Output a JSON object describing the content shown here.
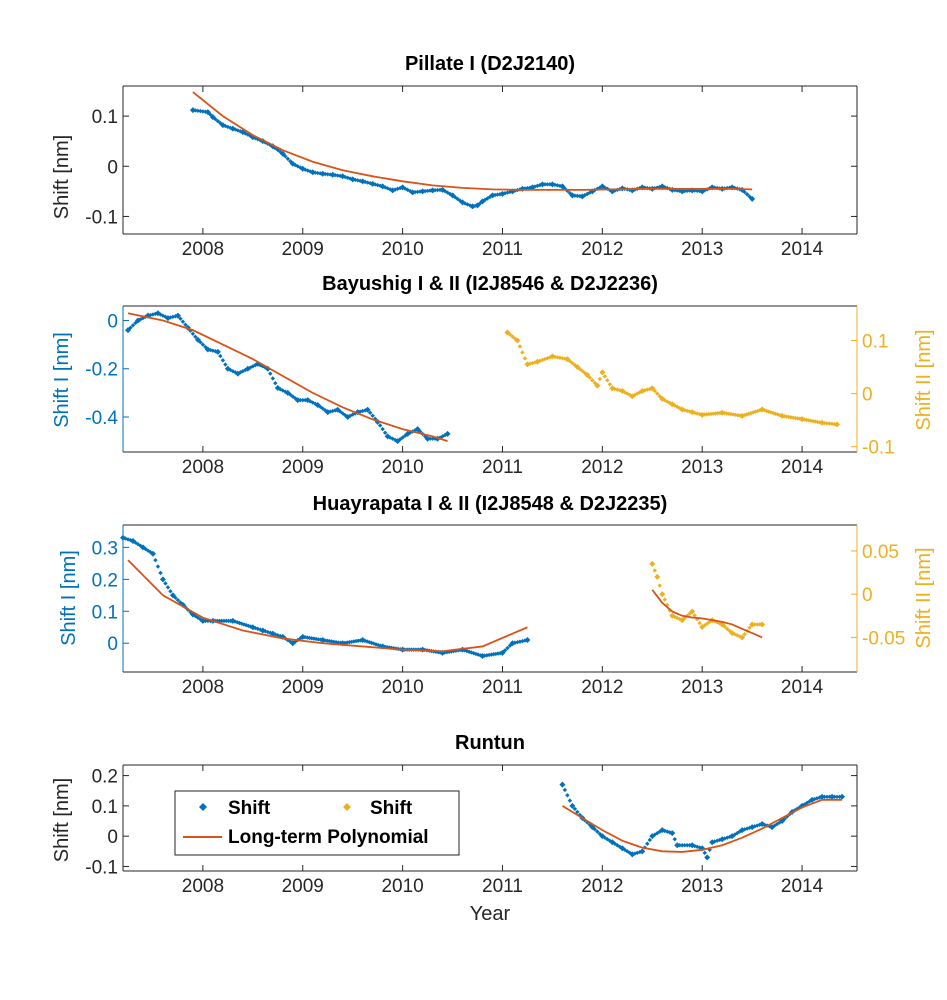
{
  "colors": {
    "primary": "#0072BD",
    "secondary": "#EDB120",
    "fit": "#D95319",
    "axis": "#262626"
  },
  "chart_data": [
    {
      "type": "scatter",
      "title": "Pillate I (D2J2140)",
      "ylabel": "Shift [nm]",
      "xlim": [
        2007.2,
        2014.55
      ],
      "ylim": [
        -0.135,
        0.16
      ],
      "xticks": [
        2008,
        2009,
        2010,
        2011,
        2012,
        2013,
        2014
      ],
      "yticks": [
        -0.1,
        0,
        0.1
      ],
      "ytick_labels": [
        "-0.1",
        "0",
        "0.1"
      ],
      "series": [
        {
          "name": "Shift",
          "color": "#0072BD",
          "kind": "dots",
          "axis": "left",
          "x": [
            2007.9,
            2008.05,
            2008.1,
            2008.2,
            2008.3,
            2008.4,
            2008.5,
            2008.6,
            2008.7,
            2008.8,
            2008.9,
            2009.0,
            2009.1,
            2009.2,
            2009.3,
            2009.4,
            2009.5,
            2009.6,
            2009.7,
            2009.8,
            2009.9,
            2010.0,
            2010.1,
            2010.2,
            2010.3,
            2010.4,
            2010.5,
            2010.6,
            2010.7,
            2010.75,
            2010.8,
            2010.9,
            2011.0,
            2011.1,
            2011.2,
            2011.3,
            2011.4,
            2011.5,
            2011.6,
            2011.7,
            2011.8,
            2011.9,
            2012.0,
            2012.1,
            2012.2,
            2012.3,
            2012.4,
            2012.5,
            2012.6,
            2012.7,
            2012.8,
            2012.9,
            2013.0,
            2013.1,
            2013.2,
            2013.3,
            2013.4,
            2013.5
          ],
          "y": [
            0.112,
            0.108,
            0.098,
            0.082,
            0.075,
            0.068,
            0.058,
            0.05,
            0.04,
            0.025,
            0.005,
            -0.005,
            -0.012,
            -0.015,
            -0.017,
            -0.02,
            -0.026,
            -0.03,
            -0.035,
            -0.04,
            -0.048,
            -0.042,
            -0.052,
            -0.05,
            -0.048,
            -0.047,
            -0.058,
            -0.072,
            -0.08,
            -0.078,
            -0.07,
            -0.058,
            -0.055,
            -0.05,
            -0.045,
            -0.042,
            -0.036,
            -0.036,
            -0.04,
            -0.058,
            -0.06,
            -0.05,
            -0.04,
            -0.05,
            -0.044,
            -0.048,
            -0.042,
            -0.045,
            -0.04,
            -0.047,
            -0.05,
            -0.048,
            -0.05,
            -0.042,
            -0.045,
            -0.042,
            -0.047,
            -0.065
          ]
        },
        {
          "name": "Long-term Polynomial",
          "color": "#D95319",
          "kind": "line",
          "axis": "left",
          "x": [
            2007.9,
            2008.2,
            2008.5,
            2008.8,
            2009.1,
            2009.4,
            2009.7,
            2010.0,
            2010.3,
            2010.6,
            2010.9,
            2011.2,
            2011.5,
            2011.8,
            2012.1,
            2012.4,
            2012.7,
            2013.0,
            2013.3,
            2013.5
          ],
          "y": [
            0.148,
            0.1,
            0.062,
            0.032,
            0.009,
            -0.008,
            -0.02,
            -0.03,
            -0.038,
            -0.043,
            -0.046,
            -0.047,
            -0.047,
            -0.047,
            -0.046,
            -0.045,
            -0.045,
            -0.045,
            -0.045,
            -0.046
          ]
        }
      ]
    },
    {
      "type": "scatter",
      "title": "Bayushig I & II (I2J8546 & D2J2236)",
      "ylabel": "Shift I [nm]",
      "ylabel_right": "Shift II [nm]",
      "xlim": [
        2007.2,
        2014.55
      ],
      "ylim": [
        -0.545,
        0.06
      ],
      "ylim_right": [
        -0.11,
        0.165
      ],
      "xticks": [
        2008,
        2009,
        2010,
        2011,
        2012,
        2013,
        2014
      ],
      "yticks": [
        -0.4,
        -0.2,
        0
      ],
      "ytick_labels": [
        "-0.4",
        "-0.2",
        "0"
      ],
      "yticks_right": [
        -0.1,
        0,
        0.1
      ],
      "ytick_labels_right": [
        "-0.1",
        "0",
        "0.1"
      ],
      "series": [
        {
          "name": "Shift I",
          "color": "#0072BD",
          "kind": "dots",
          "axis": "left",
          "x": [
            2007.25,
            2007.35,
            2007.45,
            2007.55,
            2007.65,
            2007.75,
            2007.85,
            2007.95,
            2008.05,
            2008.15,
            2008.25,
            2008.35,
            2008.45,
            2008.55,
            2008.65,
            2008.75,
            2008.85,
            2008.95,
            2009.05,
            2009.15,
            2009.25,
            2009.35,
            2009.45,
            2009.55,
            2009.65,
            2009.75,
            2009.85,
            2009.95,
            2010.05,
            2010.15,
            2010.25,
            2010.35,
            2010.45
          ],
          "y": [
            -0.04,
            0.0,
            0.02,
            0.03,
            0.01,
            0.02,
            -0.03,
            -0.08,
            -0.12,
            -0.13,
            -0.2,
            -0.22,
            -0.2,
            -0.18,
            -0.2,
            -0.28,
            -0.3,
            -0.33,
            -0.33,
            -0.35,
            -0.38,
            -0.37,
            -0.4,
            -0.38,
            -0.37,
            -0.42,
            -0.48,
            -0.5,
            -0.47,
            -0.45,
            -0.49,
            -0.49,
            -0.47
          ]
        },
        {
          "name": "Shift II",
          "color": "#EDB120",
          "kind": "dots",
          "axis": "right",
          "x": [
            2011.05,
            2011.15,
            2011.25,
            2011.35,
            2011.5,
            2011.65,
            2011.75,
            2011.85,
            2011.95,
            2012.0,
            2012.1,
            2012.2,
            2012.3,
            2012.4,
            2012.5,
            2012.6,
            2012.7,
            2012.8,
            2012.9,
            2013.0,
            2013.2,
            2013.4,
            2013.6,
            2013.8,
            2014.0,
            2014.2,
            2014.35
          ],
          "y": [
            0.115,
            0.1,
            0.055,
            0.06,
            0.07,
            0.065,
            0.05,
            0.035,
            0.015,
            0.04,
            0.01,
            0.005,
            -0.005,
            0.005,
            0.01,
            -0.01,
            -0.02,
            -0.03,
            -0.035,
            -0.04,
            -0.036,
            -0.042,
            -0.03,
            -0.042,
            -0.048,
            -0.055,
            -0.058
          ]
        },
        {
          "name": "Long-term Polynomial",
          "color": "#D95319",
          "kind": "line",
          "axis": "left",
          "x": [
            2007.25,
            2007.6,
            2007.9,
            2008.2,
            2008.5,
            2008.8,
            2009.1,
            2009.4,
            2009.7,
            2010.0,
            2010.3,
            2010.45
          ],
          "y": [
            0.03,
            0.0,
            -0.04,
            -0.1,
            -0.16,
            -0.23,
            -0.3,
            -0.36,
            -0.41,
            -0.45,
            -0.48,
            -0.5
          ]
        }
      ]
    },
    {
      "type": "scatter",
      "title": "Huayrapata I & II (I2J8548 & D2J2235)",
      "ylabel": "Shift I [nm]",
      "ylabel_right": "Shift II [nm]",
      "xlim": [
        2007.2,
        2014.55
      ],
      "ylim": [
        -0.09,
        0.37
      ],
      "ylim_right": [
        -0.09,
        0.08
      ],
      "xticks": [
        2008,
        2009,
        2010,
        2011,
        2012,
        2013,
        2014
      ],
      "yticks": [
        0,
        0.1,
        0.2,
        0.3
      ],
      "ytick_labels": [
        "0",
        "0.1",
        "0.2",
        "0.3"
      ],
      "yticks_right": [
        -0.05,
        0,
        0.05
      ],
      "ytick_labels_right": [
        "-0.05",
        "0",
        "0.05"
      ],
      "series": [
        {
          "name": "Shift I",
          "color": "#0072BD",
          "kind": "dots",
          "axis": "left",
          "x": [
            2007.2,
            2007.3,
            2007.4,
            2007.5,
            2007.6,
            2007.7,
            2007.8,
            2007.9,
            2008.0,
            2008.1,
            2008.3,
            2008.5,
            2008.6,
            2008.7,
            2008.8,
            2008.9,
            2009.0,
            2009.2,
            2009.4,
            2009.6,
            2009.8,
            2010.0,
            2010.2,
            2010.4,
            2010.6,
            2010.8,
            2011.0,
            2011.1,
            2011.25
          ],
          "y": [
            0.33,
            0.32,
            0.3,
            0.28,
            0.2,
            0.15,
            0.12,
            0.09,
            0.07,
            0.07,
            0.07,
            0.05,
            0.04,
            0.03,
            0.02,
            0.0,
            0.02,
            0.01,
            0.0,
            0.01,
            -0.01,
            -0.02,
            -0.02,
            -0.03,
            -0.02,
            -0.04,
            -0.03,
            0.0,
            0.01
          ]
        },
        {
          "name": "Shift II",
          "color": "#EDB120",
          "kind": "dots",
          "axis": "right",
          "x": [
            2012.5,
            2012.55,
            2012.6,
            2012.7,
            2012.8,
            2012.9,
            2013.0,
            2013.1,
            2013.2,
            2013.3,
            2013.4,
            2013.5,
            2013.6
          ],
          "y": [
            0.035,
            0.02,
            0.0,
            -0.025,
            -0.03,
            -0.02,
            -0.038,
            -0.03,
            -0.035,
            -0.045,
            -0.05,
            -0.035,
            -0.035
          ]
        },
        {
          "name": "Long-term Polynomial",
          "color": "#D95319",
          "kind": "line",
          "axis": "left",
          "x": [
            2007.25,
            2007.6,
            2008.0,
            2008.4,
            2008.8,
            2009.2,
            2009.6,
            2010.0,
            2010.4,
            2010.8,
            2011.25
          ],
          "y": [
            0.26,
            0.15,
            0.08,
            0.04,
            0.015,
            0.0,
            -0.01,
            -0.02,
            -0.025,
            -0.01,
            0.05
          ]
        },
        {
          "name": "Long-term Polynomial",
          "color": "#D95319",
          "kind": "line",
          "axis": "right",
          "x": [
            2012.5,
            2012.6,
            2012.7,
            2012.8,
            2012.9,
            2013.0,
            2013.1,
            2013.2,
            2013.3,
            2013.4,
            2013.5,
            2013.6
          ],
          "y": [
            0.005,
            -0.01,
            -0.02,
            -0.025,
            -0.027,
            -0.028,
            -0.03,
            -0.032,
            -0.035,
            -0.04,
            -0.045,
            -0.05
          ]
        }
      ]
    },
    {
      "type": "scatter",
      "title": "Runtun",
      "ylabel": "Shift [nm]",
      "xlabel": "Year",
      "xlim": [
        2007.2,
        2014.55
      ],
      "ylim": [
        -0.115,
        0.235
      ],
      "xticks": [
        2008,
        2009,
        2010,
        2011,
        2012,
        2013,
        2014
      ],
      "yticks": [
        -0.1,
        0,
        0.1,
        0.2
      ],
      "ytick_labels": [
        "-0.1",
        "0",
        "0.1",
        "0.2"
      ],
      "series": [
        {
          "name": "Shift",
          "color": "#0072BD",
          "kind": "dots",
          "axis": "left",
          "x": [
            2011.6,
            2011.7,
            2011.8,
            2011.9,
            2012.0,
            2012.1,
            2012.2,
            2012.3,
            2012.4,
            2012.5,
            2012.6,
            2012.7,
            2012.75,
            2012.9,
            2013.0,
            2013.05,
            2013.1,
            2013.2,
            2013.3,
            2013.4,
            2013.5,
            2013.6,
            2013.7,
            2013.8,
            2013.9,
            2014.0,
            2014.1,
            2014.2,
            2014.3,
            2014.4
          ],
          "y": [
            0.17,
            0.1,
            0.06,
            0.03,
            0.0,
            -0.02,
            -0.04,
            -0.06,
            -0.05,
            0.0,
            0.02,
            0.01,
            -0.03,
            -0.03,
            -0.04,
            -0.07,
            -0.02,
            -0.01,
            0.0,
            0.02,
            0.03,
            0.04,
            0.03,
            0.05,
            0.08,
            0.1,
            0.12,
            0.13,
            0.13,
            0.13
          ]
        },
        {
          "name": "Long-term Polynomial",
          "color": "#D95319",
          "kind": "line",
          "axis": "left",
          "x": [
            2011.6,
            2011.8,
            2012.0,
            2012.2,
            2012.4,
            2012.6,
            2012.8,
            2013.0,
            2013.2,
            2013.4,
            2013.6,
            2013.8,
            2014.0,
            2014.2,
            2014.4
          ],
          "y": [
            0.1,
            0.06,
            0.02,
            -0.015,
            -0.038,
            -0.05,
            -0.052,
            -0.045,
            -0.03,
            -0.005,
            0.025,
            0.06,
            0.095,
            0.12,
            0.12
          ]
        }
      ],
      "legend": {
        "position": "top-left",
        "entries": [
          {
            "label": "Shift",
            "kind": "dots",
            "color": "#0072BD"
          },
          {
            "label": "Shift",
            "kind": "dots",
            "color": "#EDB120"
          },
          {
            "label": "Long-term Polynomial",
            "kind": "line",
            "color": "#D95319"
          }
        ]
      }
    }
  ]
}
